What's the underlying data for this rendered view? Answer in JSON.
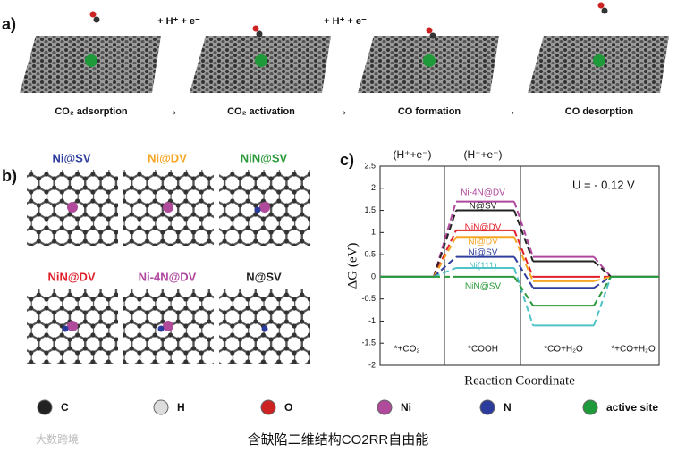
{
  "panel_a": {
    "label": "a)",
    "reagents": [
      "+ H⁺ + e⁻",
      "+ H⁺ + e⁻"
    ],
    "steps": [
      "CO₂ adsorption",
      "CO₂ activation",
      "CO formation",
      "CO desorption"
    ]
  },
  "panel_b": {
    "label": "b)",
    "structures": [
      "Ni@SV",
      "Ni@DV",
      "NiN@SV",
      "NiN@DV",
      "Ni-4N@DV",
      "N@SV"
    ]
  },
  "legend_elements": [
    "C",
    "H",
    "O",
    "Ni",
    "N",
    "active site"
  ],
  "caption": "含缺陷二维结构CO2RR自由能",
  "watermark": "大数跨境",
  "chart_data": {
    "type": "line",
    "panel_label": "c)",
    "ylabel": "ΔG (eV)",
    "xlabel": "Reaction Coordinate",
    "categories": [
      "*+CO₂",
      "*COOH",
      "*CO+H₂O",
      "*+CO+H₂O"
    ],
    "step_labels": [
      "(H⁺+e⁻)",
      "(H⁺+e⁻)"
    ],
    "annotation": "U = - 0.12 V",
    "ylim": [
      -2,
      2.5
    ],
    "yticks": [
      -2,
      -1.5,
      -1,
      -0.5,
      0,
      0.5,
      1,
      1.5,
      2,
      2.5
    ],
    "series": [
      {
        "name": "Ni-4N@DV",
        "color": "#b0479e",
        "values": [
          0,
          1.7,
          0.45,
          0
        ]
      },
      {
        "name": "N@SV",
        "color": "#222222",
        "values": [
          0,
          1.5,
          0.35,
          0
        ]
      },
      {
        "name": "NiN@DV",
        "color": "#e0202a",
        "values": [
          0,
          1.05,
          0,
          0
        ]
      },
      {
        "name": "Ni@DV",
        "color": "#f5a623",
        "values": [
          0,
          0.9,
          -0.1,
          0
        ]
      },
      {
        "name": "Ni@SV",
        "color": "#2f3e9e",
        "values": [
          0,
          0.45,
          -0.25,
          0
        ]
      },
      {
        "name": "Ni(111)",
        "color": "#4fc3c7",
        "values": [
          0,
          0.2,
          -1.1,
          0
        ]
      },
      {
        "name": "NiN@SV",
        "color": "#2a9a3a",
        "values": [
          0,
          0,
          -0.65,
          0
        ]
      }
    ]
  }
}
